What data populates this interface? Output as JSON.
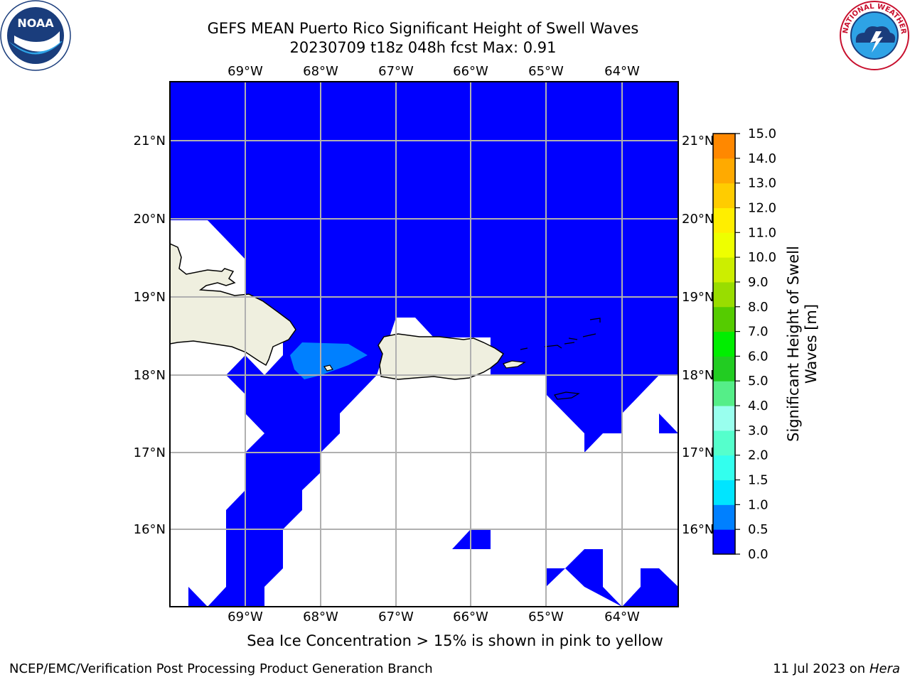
{
  "title_line1": "GEFS MEAN Puerto Rico Significant Height of Swell Waves",
  "title_line2": "20230709 t18z 048h fcst   Max: 0.91",
  "lon_labels": [
    "69°W",
    "68°W",
    "67°W",
    "66°W",
    "65°W",
    "64°W"
  ],
  "lat_labels": [
    "21°N",
    "20°N",
    "19°N",
    "18°N",
    "17°N",
    "16°N"
  ],
  "colorbar": {
    "label_line1": "Significant Height of Swell",
    "label_line2": "Waves [m]",
    "ticks": [
      "15.0",
      "14.0",
      "13.0",
      "12.0",
      "11.0",
      "10.0",
      "9.0",
      "8.0",
      "7.0",
      "6.0",
      "5.0",
      "4.0",
      "3.0",
      "2.0",
      "1.5",
      "1.0",
      "0.5",
      "0.0"
    ],
    "colors": [
      "#0000ff",
      "#0080ff",
      "#00e5ff",
      "#33ffee",
      "#55ffcc",
      "#99ffee",
      "#55ee88",
      "#22cc22",
      "#00ee00",
      "#55cc00",
      "#99dd00",
      "#ccee00",
      "#eeff00",
      "#ffee00",
      "#ffcc00",
      "#ffaa00",
      "#ff8800",
      "#ff5500",
      "#ff2a00",
      "#ff0000"
    ]
  },
  "footnote": "Sea Ice Concentration > 15% is shown in pink to yellow",
  "footer_left": "NCEP/EMC/Verification Post Processing Product Generation Branch",
  "footer_right_date": "11 Jul 2023 on ",
  "footer_right_host": "Hera",
  "logos": {
    "left": {
      "name": "noaa-logo",
      "text": "NOAA"
    },
    "right": {
      "name": "nws-logo",
      "text": "NATIONAL WEATHER SERVICE"
    }
  },
  "colors": {
    "ocean": "#0000ff",
    "ocean_light": "#0080ff",
    "land": "#efefdf",
    "grid": "#b0b0b0"
  }
}
